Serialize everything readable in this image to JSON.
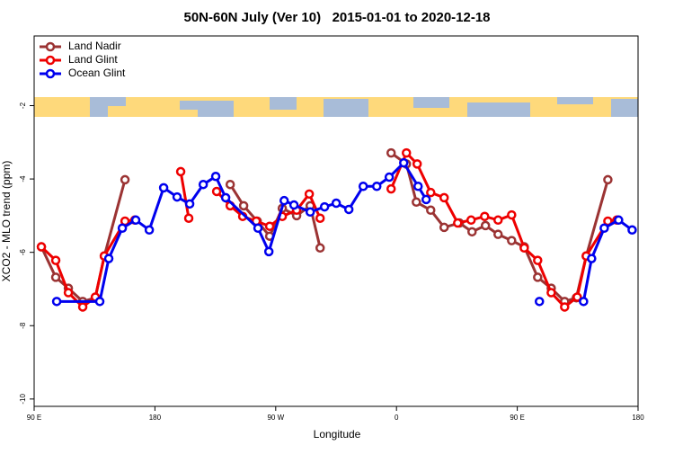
{
  "chart_data": {
    "type": "line",
    "title": "50N-60N July (Ver 10)   2015-01-01 to 2020-12-18",
    "x_label": "Longitude",
    "y_label": "XCO2 - MLO trend (ppm)",
    "xlim": [
      90,
      540
    ],
    "xticks": [
      {
        "value": 90,
        "label": "90 E"
      },
      {
        "value": 180,
        "label": "180"
      },
      {
        "value": 270,
        "label": "90 W"
      },
      {
        "value": 360,
        "label": "0"
      },
      {
        "value": 450,
        "label": "90 E"
      },
      {
        "value": 540,
        "label": "180"
      }
    ],
    "ylim": [
      -10.2,
      -0.1
    ],
    "yticks": [
      -2,
      -4,
      -6,
      -8,
      -10
    ],
    "legend": "top-left",
    "series": [
      {
        "name": "Land Nadir",
        "color": "#9b3333",
        "x": [
          95.4,
          106.1,
          115.5,
          126.2,
          135.6,
          142.3,
          157.7,
          null,
          236.1,
          246.1,
          256.2,
          265.5,
          274.9,
          285.6,
          295.7,
          303.1,
          null,
          356.0,
          367.4,
          374.8,
          385.5,
          395.5,
          406.9,
          416.3,
          426.3,
          435.7,
          445.8,
          455.2,
          465.2,
          475.3,
          485.3,
          494.0,
          501.4,
          517.5
        ],
        "values": [
          -5.85,
          -6.68,
          -6.98,
          -7.34,
          -7.24,
          -6.1,
          -4.02,
          null,
          -4.15,
          -4.73,
          -5.15,
          -5.56,
          -4.8,
          -5.0,
          -4.73,
          -5.88,
          null,
          -3.29,
          -3.59,
          -4.63,
          -4.85,
          -5.32,
          -5.2,
          -5.44,
          -5.27,
          -5.51,
          -5.68,
          -5.85,
          -6.68,
          -6.98,
          -7.34,
          -7.24,
          -6.1,
          -4.02
        ]
      },
      {
        "name": "Land Glint",
        "color": "#ee0000",
        "x": [
          95.4,
          106.1,
          115.5,
          126.2,
          135.6,
          142.3,
          157.7,
          165.0,
          null,
          199.2,
          205.2,
          null,
          226.0,
          236.1,
          245.4,
          255.5,
          265.5,
          274.9,
          285.6,
          295.0,
          303.1,
          null,
          356.0,
          367.4,
          375.4,
          385.5,
          395.5,
          405.6,
          415.6,
          425.7,
          435.7,
          445.8,
          455.2,
          465.2,
          475.3,
          485.3,
          494.7,
          501.4,
          517.5,
          524.2
        ],
        "values": [
          -5.85,
          -6.22,
          -7.1,
          -7.49,
          -7.22,
          -6.1,
          -5.15,
          -5.12,
          null,
          -3.8,
          -5.07,
          null,
          -4.34,
          -4.73,
          -5.02,
          -5.15,
          -5.29,
          -5.02,
          -4.85,
          -4.41,
          -5.07,
          null,
          -4.27,
          -3.29,
          -3.59,
          -4.37,
          -4.51,
          -5.2,
          -5.12,
          -5.02,
          -5.12,
          -4.98,
          -5.88,
          -6.22,
          -7.1,
          -7.49,
          -7.22,
          -6.1,
          -5.15,
          -5.12
        ]
      },
      {
        "name": "Ocean Glint",
        "color": "#0000ee",
        "x": [
          106.8,
          138.9,
          145.6,
          155.7,
          165.7,
          175.8,
          186.5,
          196.5,
          205.9,
          216.0,
          225.3,
          232.7,
          256.8,
          264.9,
          276.3,
          283.6,
          295.7,
          306.4,
          315.1,
          324.5,
          335.2,
          345.3,
          354.6,
          365.4,
          376.1,
          382.1,
          null,
          466.5,
          null,
          499.4,
          505.4,
          514.8,
          525.5,
          535.6
        ],
        "values": [
          -7.34,
          -7.34,
          -6.17,
          -5.34,
          -5.12,
          -5.39,
          -4.24,
          -4.49,
          -4.68,
          -4.15,
          -3.93,
          -4.51,
          -5.34,
          -5.98,
          -4.59,
          -4.71,
          -4.9,
          -4.76,
          -4.66,
          -4.83,
          -4.2,
          -4.2,
          -3.95,
          -3.56,
          -4.2,
          -4.56,
          null,
          -7.34,
          null,
          -7.34,
          -6.17,
          -5.34,
          -5.12,
          -5.39
        ]
      }
    ]
  }
}
